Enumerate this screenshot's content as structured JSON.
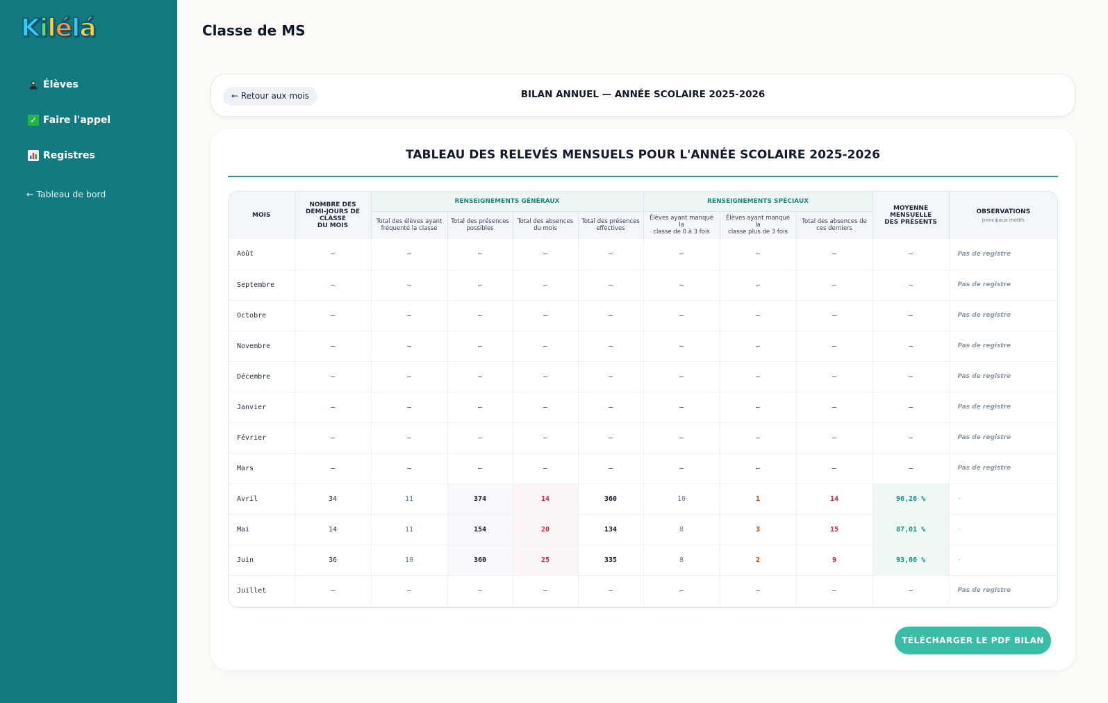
{
  "app": {
    "logo_letters": [
      "K",
      "i",
      "l",
      "é",
      "l",
      "á"
    ],
    "logo_colors": [
      "#3cc9f0",
      "#62d86e",
      "#ffd23c",
      "#ff9a3c",
      "#3cc9f0",
      "#ffd23c"
    ]
  },
  "sidebar": {
    "items": [
      {
        "label": "Élèves",
        "icon": "student-icon"
      },
      {
        "label": "Faire l'appel",
        "icon": "check-icon"
      },
      {
        "label": "Registres",
        "icon": "bar-chart-icon"
      }
    ],
    "back_link": "← Tableau de bord"
  },
  "page": {
    "title": "Classe de MS"
  },
  "topcard": {
    "back_button": "← Retour aux mois",
    "title": "BILAN ANNUEL — ANNÉE SCOLAIRE 2025-2026"
  },
  "report": {
    "title": "TABLEAU DES RELEVÉS MENSUELS POUR L'ANNÉE SCOLAIRE 2025-2026",
    "headers": {
      "mois": "MOIS",
      "demi_jours_1": "NOMBRE DES",
      "demi_jours_2": "DEMI-JOURS DE",
      "demi_jours_3": "CLASSE",
      "demi_jours_4": "DU MOIS",
      "group_general": "RENSEIGNEMENTS GÉNÉRAUX",
      "group_special": "RENSEIGNEMENTS SPÉCIAUX",
      "moyenne_1": "MOYENNE",
      "moyenne_2": "MENSUELLE",
      "moyenne_3": "DES PRÉSENTS",
      "observations": "OBSERVATIONS",
      "observations_sub": "principaux motifs",
      "sub": [
        [
          "Total des élèves ayant",
          "fréquenté la classe"
        ],
        [
          "Total des présences",
          "possibles"
        ],
        [
          "Total des absences",
          "du mois"
        ],
        [
          "Total des présences",
          "effectives"
        ],
        [
          "Élèves ayant manqué la",
          "classe de 0 à 3 fois"
        ],
        [
          "Élèves ayant manqué la",
          "classe plus de 3 fois"
        ],
        [
          "Total des absences de",
          "ces derniers"
        ]
      ]
    },
    "rows": [
      {
        "month": "Août",
        "cells": [
          "–",
          "–",
          "–",
          "–",
          "–",
          "–",
          "–",
          "–",
          "–"
        ],
        "obs": "Pas de registre",
        "has_data": false
      },
      {
        "month": "Septembre",
        "cells": [
          "–",
          "–",
          "–",
          "–",
          "–",
          "–",
          "–",
          "–",
          "–"
        ],
        "obs": "Pas de registre",
        "has_data": false
      },
      {
        "month": "Octobre",
        "cells": [
          "–",
          "–",
          "–",
          "–",
          "–",
          "–",
          "–",
          "–",
          "–"
        ],
        "obs": "Pas de registre",
        "has_data": false
      },
      {
        "month": "Novembre",
        "cells": [
          "–",
          "–",
          "–",
          "–",
          "–",
          "–",
          "–",
          "–",
          "–"
        ],
        "obs": "Pas de registre",
        "has_data": false
      },
      {
        "month": "Décembre",
        "cells": [
          "–",
          "–",
          "–",
          "–",
          "–",
          "–",
          "–",
          "–",
          "–"
        ],
        "obs": "Pas de registre",
        "has_data": false
      },
      {
        "month": "Janvier",
        "cells": [
          "–",
          "–",
          "–",
          "–",
          "–",
          "–",
          "–",
          "–",
          "–"
        ],
        "obs": "Pas de registre",
        "has_data": false
      },
      {
        "month": "Février",
        "cells": [
          "–",
          "–",
          "–",
          "–",
          "–",
          "–",
          "–",
          "–",
          "–"
        ],
        "obs": "Pas de registre",
        "has_data": false
      },
      {
        "month": "Mars",
        "cells": [
          "–",
          "–",
          "–",
          "–",
          "–",
          "–",
          "–",
          "–",
          "–"
        ],
        "obs": "Pas de registre",
        "has_data": false
      },
      {
        "month": "Avril",
        "cells": [
          "34",
          "11",
          "374",
          "14",
          "360",
          "10",
          "1",
          "14",
          "96,26 %"
        ],
        "obs": "-",
        "has_data": true
      },
      {
        "month": "Mai",
        "cells": [
          "14",
          "11",
          "154",
          "20",
          "134",
          "8",
          "3",
          "15",
          "87,01 %"
        ],
        "obs": "-",
        "has_data": true
      },
      {
        "month": "Juin",
        "cells": [
          "36",
          "10",
          "360",
          "25",
          "335",
          "8",
          "2",
          "9",
          "93,06 %"
        ],
        "obs": "-",
        "has_data": true
      },
      {
        "month": "Juillet",
        "cells": [
          "–",
          "–",
          "–",
          "–",
          "–",
          "–",
          "–",
          "–",
          "–"
        ],
        "obs": "Pas de registre",
        "has_data": false
      }
    ],
    "download_button": "TÉLÉCHARGER LE PDF BILAN"
  },
  "colors": {
    "sidebar": "#137a80",
    "accent": "#1f9b8a",
    "button": "#3bbca7",
    "absence_red": "#d21f3c",
    "orange": "#c2410c"
  }
}
